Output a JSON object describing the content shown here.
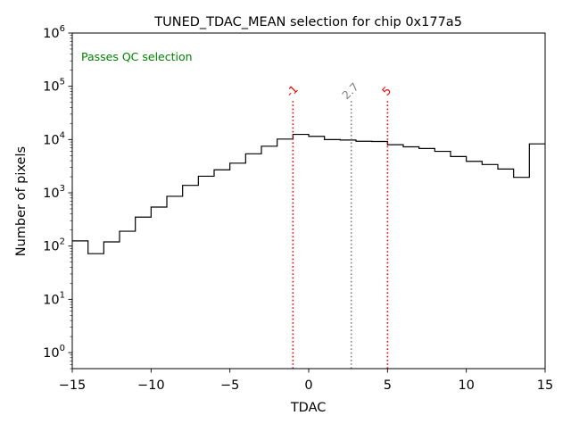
{
  "chart_data": {
    "type": "histogram",
    "title": "TUNED_TDAC_MEAN selection for chip 0x177a5",
    "xlabel": "TDAC",
    "ylabel": "Number of pixels",
    "yscale": "log",
    "xlim": [
      -15,
      15
    ],
    "ylim": [
      0.5,
      1000000
    ],
    "x_ticks": [
      -15,
      -10,
      -5,
      0,
      5,
      10,
      15
    ],
    "x_tick_labels": [
      "−15",
      "−10",
      "−5",
      "0",
      "5",
      "10",
      "15"
    ],
    "y_ticks": [
      1,
      10,
      100,
      1000,
      10000,
      100000,
      1000000
    ],
    "y_tick_labels": [
      {
        "base": "10",
        "exp": "0"
      },
      {
        "base": "10",
        "exp": "1"
      },
      {
        "base": "10",
        "exp": "2"
      },
      {
        "base": "10",
        "exp": "3"
      },
      {
        "base": "10",
        "exp": "4"
      },
      {
        "base": "10",
        "exp": "5"
      },
      {
        "base": "10",
        "exp": "6"
      }
    ],
    "bin_edges": [
      -15,
      -14,
      -13,
      -12,
      -11,
      -10,
      -9,
      -8,
      -7,
      -6,
      -5,
      -4,
      -3,
      -2,
      -1,
      0,
      1,
      2,
      3,
      4,
      5,
      6,
      7,
      8,
      9,
      10,
      11,
      12,
      13,
      14,
      15
    ],
    "counts": [
      125,
      72,
      120,
      190,
      350,
      540,
      860,
      1380,
      2050,
      2700,
      3600,
      5400,
      7500,
      10200,
      12500,
      11500,
      10000,
      9800,
      9300,
      9200,
      8000,
      7300,
      6800,
      6000,
      4800,
      3900,
      3400,
      2800,
      1950,
      8300
    ],
    "annotation": {
      "text": "Passes QC selection",
      "color": "#008000"
    },
    "vlines": [
      {
        "x": -1,
        "label": "-1",
        "color": "#ff0000"
      },
      {
        "x": 2.7,
        "label": "2.7",
        "color": "#808080"
      },
      {
        "x": 5,
        "label": "5",
        "color": "#ff0000"
      }
    ]
  }
}
